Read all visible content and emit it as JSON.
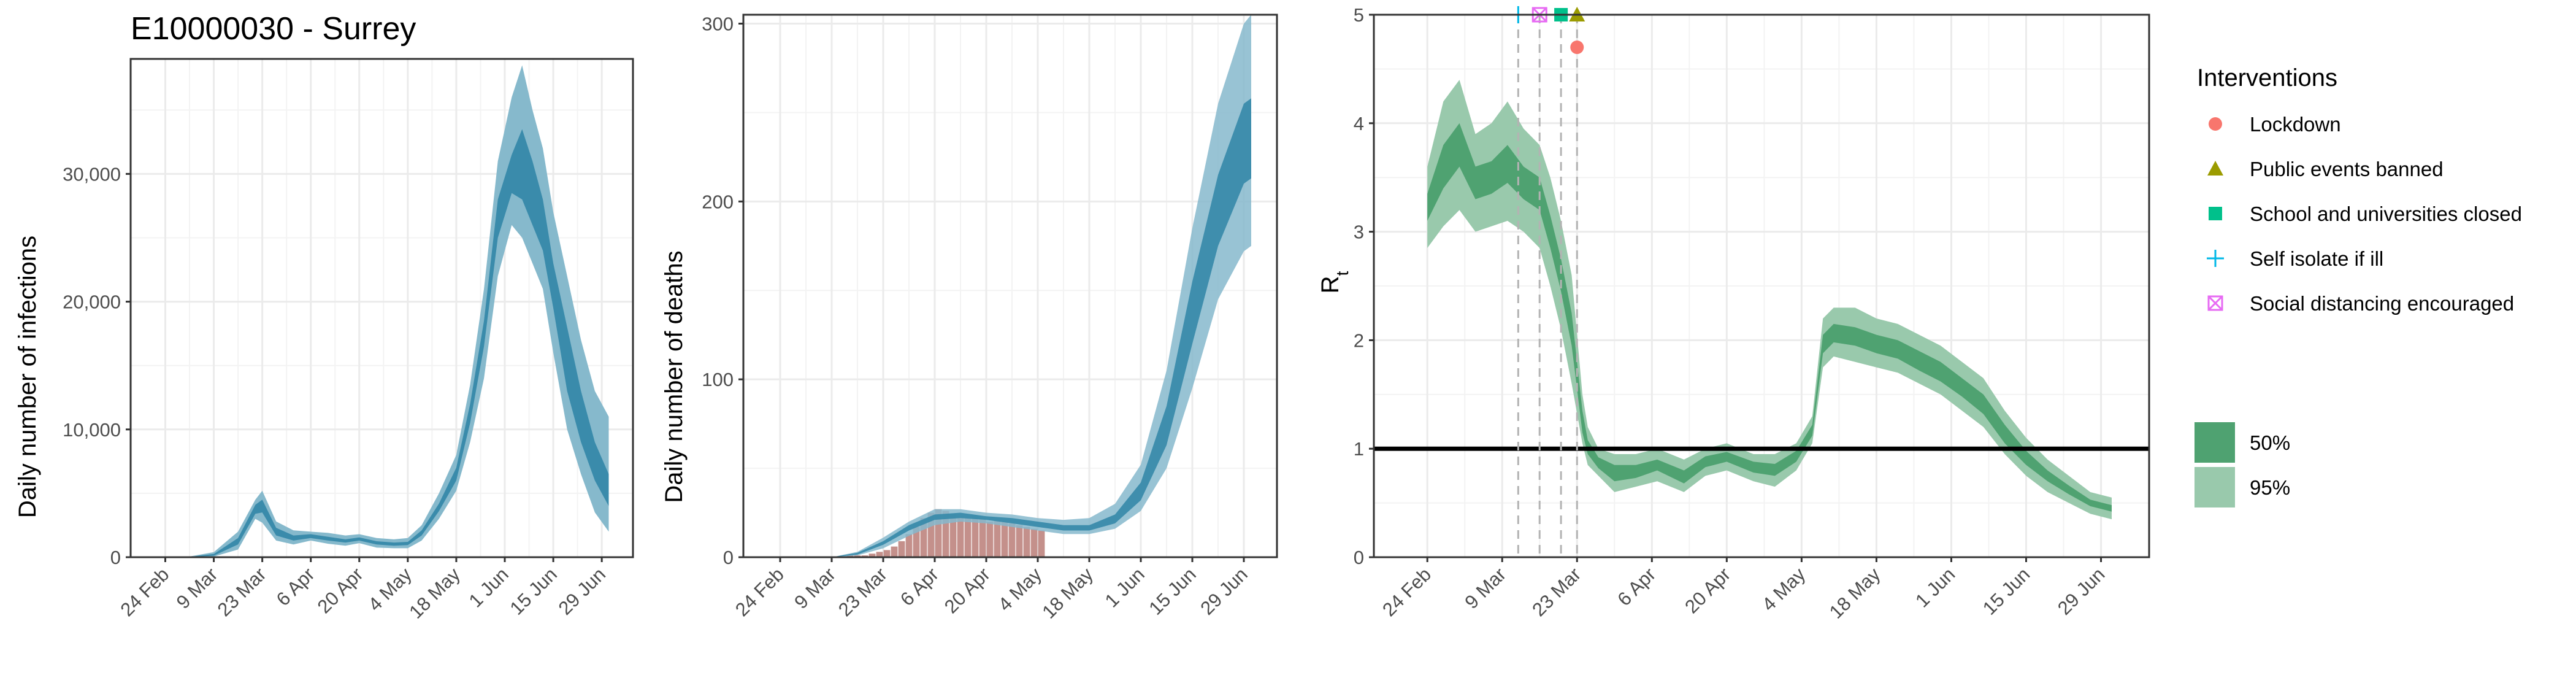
{
  "title": "E10000030 - Surrey",
  "colors": {
    "infections_95": "#86b9cc",
    "infections_50": "#3a8bab",
    "deaths_95": "#86b9cc",
    "deaths_50": "#3a8bab",
    "observed_deaths": "#c4908b",
    "rt_95": "#99c9ac",
    "rt_50": "#4fa271",
    "grid": "#ebebeb",
    "panel_border": "#333333"
  },
  "date_ticks": [
    "24 Feb",
    "9 Mar",
    "23 Mar",
    "6 Apr",
    "20 Apr",
    "4 May",
    "18 May",
    "1 Jun",
    "15 Jun",
    "29 Jun"
  ],
  "date_ticks_iso": [
    "2020-02-24",
    "2020-03-09",
    "2020-03-23",
    "2020-04-06",
    "2020-04-20",
    "2020-05-04",
    "2020-05-18",
    "2020-06-01",
    "2020-06-15",
    "2020-06-29"
  ],
  "chart_data": [
    {
      "type": "area",
      "name": "infections",
      "ylabel": "Daily number of infections",
      "xlim": [
        "2020-02-14",
        "2020-07-08"
      ],
      "ylim": [
        0,
        39000
      ],
      "y_ticks": [
        0,
        10000,
        20000,
        30000
      ],
      "y_tick_labels": [
        "0",
        "10,000",
        "20,000",
        "30,000"
      ],
      "grid": true,
      "series": [
        {
          "name": "95%",
          "x": [
            "2020-02-24",
            "2020-03-01",
            "2020-03-09",
            "2020-03-16",
            "2020-03-21",
            "2020-03-23",
            "2020-03-27",
            "2020-04-01",
            "2020-04-06",
            "2020-04-11",
            "2020-04-16",
            "2020-04-20",
            "2020-04-25",
            "2020-04-30",
            "2020-05-04",
            "2020-05-08",
            "2020-05-13",
            "2020-05-18",
            "2020-05-22",
            "2020-05-26",
            "2020-05-30",
            "2020-06-03",
            "2020-06-06",
            "2020-06-09",
            "2020-06-12",
            "2020-06-15",
            "2020-06-19",
            "2020-06-23",
            "2020-06-27",
            "2020-07-01"
          ],
          "lower": [
            0,
            0,
            50,
            600,
            3000,
            2700,
            1300,
            1000,
            1300,
            1050,
            900,
            1100,
            750,
            700,
            700,
            1300,
            3000,
            5200,
            9000,
            14000,
            22000,
            26000,
            25000,
            23000,
            21000,
            16000,
            10000,
            6500,
            3500,
            2000
          ],
          "upper": [
            0,
            5,
            400,
            2000,
            4500,
            5200,
            2800,
            2100,
            2000,
            1900,
            1700,
            1800,
            1500,
            1400,
            1500,
            2500,
            5000,
            8000,
            13500,
            21000,
            31000,
            36000,
            38500,
            35000,
            32000,
            27000,
            22000,
            17000,
            13000,
            11000
          ]
        },
        {
          "name": "50%",
          "x": [
            "2020-02-24",
            "2020-03-01",
            "2020-03-09",
            "2020-03-16",
            "2020-03-21",
            "2020-03-23",
            "2020-03-27",
            "2020-04-01",
            "2020-04-06",
            "2020-04-11",
            "2020-04-16",
            "2020-04-20",
            "2020-04-25",
            "2020-04-30",
            "2020-05-04",
            "2020-05-08",
            "2020-05-13",
            "2020-05-18",
            "2020-05-22",
            "2020-05-26",
            "2020-05-30",
            "2020-06-03",
            "2020-06-06",
            "2020-06-09",
            "2020-06-12",
            "2020-06-15",
            "2020-06-19",
            "2020-06-23",
            "2020-06-27",
            "2020-07-01"
          ],
          "lower": [
            0,
            0,
            120,
            1000,
            3400,
            3500,
            1700,
            1300,
            1500,
            1300,
            1150,
            1300,
            1000,
            900,
            950,
            1700,
            3600,
            6000,
            10500,
            16500,
            25000,
            28500,
            28000,
            26000,
            24000,
            19500,
            13000,
            9000,
            6000,
            4000
          ],
          "upper": [
            0,
            2,
            250,
            1500,
            4100,
            4500,
            2300,
            1700,
            1800,
            1600,
            1400,
            1550,
            1250,
            1150,
            1200,
            2100,
            4200,
            7000,
            12000,
            18500,
            28000,
            31500,
            33500,
            31000,
            28000,
            23000,
            18000,
            13000,
            9000,
            6500
          ]
        }
      ]
    },
    {
      "type": "bar+area",
      "name": "deaths",
      "ylabel": "Daily number of deaths",
      "xlim": [
        "2020-02-14",
        "2020-07-08"
      ],
      "ylim": [
        0,
        305
      ],
      "y_ticks": [
        0,
        100,
        200,
        300
      ],
      "y_tick_labels": [
        "0",
        "100",
        "200",
        "300"
      ],
      "grid": true,
      "observed": {
        "x": [
          "2020-03-10",
          "2020-03-12",
          "2020-03-14",
          "2020-03-16",
          "2020-03-18",
          "2020-03-20",
          "2020-03-22",
          "2020-03-24",
          "2020-03-26",
          "2020-03-28",
          "2020-03-30",
          "2020-04-01",
          "2020-04-03",
          "2020-04-05",
          "2020-04-07",
          "2020-04-09",
          "2020-04-11",
          "2020-04-13",
          "2020-04-15",
          "2020-04-17",
          "2020-04-19",
          "2020-04-21",
          "2020-04-23",
          "2020-04-25",
          "2020-04-27",
          "2020-04-29",
          "2020-05-01",
          "2020-05-03",
          "2020-05-05"
        ],
        "values": [
          0,
          0,
          1,
          1,
          1,
          2,
          3,
          4,
          6,
          9,
          13,
          17,
          22,
          25,
          27,
          26,
          24,
          23,
          22,
          23,
          22,
          20,
          21,
          20,
          19,
          18,
          17,
          16,
          15
        ]
      },
      "series": [
        {
          "name": "95%",
          "x": [
            "2020-02-24",
            "2020-03-09",
            "2020-03-16",
            "2020-03-23",
            "2020-03-30",
            "2020-04-06",
            "2020-04-13",
            "2020-04-20",
            "2020-04-27",
            "2020-05-04",
            "2020-05-11",
            "2020-05-18",
            "2020-05-25",
            "2020-06-01",
            "2020-06-08",
            "2020-06-15",
            "2020-06-22",
            "2020-06-29",
            "2020-07-01"
          ],
          "lower": [
            0,
            0,
            1,
            5,
            12,
            18,
            20,
            19,
            17,
            15,
            13,
            13,
            16,
            26,
            50,
            95,
            145,
            172,
            175
          ],
          "upper": [
            0,
            0,
            3,
            11,
            20,
            27,
            27,
            25,
            24,
            22,
            21,
            22,
            30,
            52,
            105,
            185,
            255,
            300,
            305
          ]
        },
        {
          "name": "50%",
          "x": [
            "2020-02-24",
            "2020-03-09",
            "2020-03-16",
            "2020-03-23",
            "2020-03-30",
            "2020-04-06",
            "2020-04-13",
            "2020-04-20",
            "2020-04-27",
            "2020-05-04",
            "2020-05-11",
            "2020-05-18",
            "2020-05-25",
            "2020-06-01",
            "2020-06-08",
            "2020-06-15",
            "2020-06-22",
            "2020-06-29",
            "2020-07-01"
          ],
          "lower": [
            0,
            0,
            1.5,
            7,
            15,
            21,
            22,
            21,
            19,
            17,
            15,
            15,
            19,
            32,
            63,
            120,
            175,
            210,
            213
          ],
          "upper": [
            0,
            0,
            2.5,
            9,
            18,
            24,
            25,
            23,
            22,
            20,
            18,
            18,
            24,
            42,
            85,
            155,
            215,
            255,
            258
          ]
        }
      ]
    },
    {
      "type": "area",
      "name": "rt",
      "ylabel": "Rt",
      "xlim": [
        "2020-02-14",
        "2020-07-08"
      ],
      "ylim": [
        0,
        5
      ],
      "y_ticks": [
        0,
        1,
        2,
        3,
        4,
        5
      ],
      "y_tick_labels": [
        "0",
        "1",
        "2",
        "3",
        "4",
        "5"
      ],
      "grid": true,
      "reference_line": 1,
      "series": [
        {
          "name": "95%",
          "x": [
            "2020-02-24",
            "2020-02-27",
            "2020-03-01",
            "2020-03-04",
            "2020-03-07",
            "2020-03-10",
            "2020-03-13",
            "2020-03-16",
            "2020-03-18",
            "2020-03-20",
            "2020-03-22",
            "2020-03-24",
            "2020-03-25",
            "2020-03-27",
            "2020-03-30",
            "2020-04-03",
            "2020-04-07",
            "2020-04-12",
            "2020-04-16",
            "2020-04-20",
            "2020-04-25",
            "2020-04-29",
            "2020-05-03",
            "2020-05-06",
            "2020-05-08",
            "2020-05-10",
            "2020-05-14",
            "2020-05-18",
            "2020-05-22",
            "2020-05-26",
            "2020-05-30",
            "2020-06-03",
            "2020-06-07",
            "2020-06-11",
            "2020-06-15",
            "2020-06-19",
            "2020-06-23",
            "2020-06-27",
            "2020-07-01"
          ],
          "lower": [
            2.85,
            3.05,
            3.2,
            3.0,
            3.05,
            3.1,
            3.0,
            2.85,
            2.5,
            2.1,
            1.6,
            1.05,
            0.85,
            0.75,
            0.6,
            0.65,
            0.7,
            0.6,
            0.75,
            0.8,
            0.7,
            0.65,
            0.8,
            1.05,
            1.75,
            1.85,
            1.8,
            1.75,
            1.7,
            1.6,
            1.5,
            1.35,
            1.2,
            0.95,
            0.75,
            0.6,
            0.5,
            0.4,
            0.35
          ],
          "upper": [
            3.6,
            4.2,
            4.4,
            3.9,
            4.0,
            4.2,
            3.95,
            3.8,
            3.5,
            3.1,
            2.6,
            1.5,
            1.2,
            1.0,
            0.95,
            0.95,
            1.0,
            0.9,
            1.0,
            1.05,
            0.95,
            0.95,
            1.05,
            1.3,
            2.2,
            2.3,
            2.3,
            2.2,
            2.15,
            2.05,
            1.95,
            1.8,
            1.65,
            1.35,
            1.1,
            0.9,
            0.75,
            0.6,
            0.55
          ]
        },
        {
          "name": "50%",
          "x": [
            "2020-02-24",
            "2020-02-27",
            "2020-03-01",
            "2020-03-04",
            "2020-03-07",
            "2020-03-10",
            "2020-03-13",
            "2020-03-16",
            "2020-03-18",
            "2020-03-20",
            "2020-03-22",
            "2020-03-24",
            "2020-03-25",
            "2020-03-27",
            "2020-03-30",
            "2020-04-03",
            "2020-04-07",
            "2020-04-12",
            "2020-04-16",
            "2020-04-20",
            "2020-04-25",
            "2020-04-29",
            "2020-05-03",
            "2020-05-06",
            "2020-05-08",
            "2020-05-10",
            "2020-05-14",
            "2020-05-18",
            "2020-05-22",
            "2020-05-26",
            "2020-05-30",
            "2020-06-03",
            "2020-06-07",
            "2020-06-11",
            "2020-06-15",
            "2020-06-19",
            "2020-06-23",
            "2020-06-27",
            "2020-07-01"
          ],
          "lower": [
            3.1,
            3.4,
            3.6,
            3.3,
            3.35,
            3.45,
            3.3,
            3.2,
            2.85,
            2.45,
            1.95,
            1.15,
            0.95,
            0.82,
            0.7,
            0.73,
            0.8,
            0.68,
            0.83,
            0.88,
            0.78,
            0.75,
            0.88,
            1.12,
            1.88,
            1.98,
            1.95,
            1.88,
            1.83,
            1.72,
            1.62,
            1.48,
            1.32,
            1.05,
            0.85,
            0.7,
            0.58,
            0.47,
            0.42
          ],
          "upper": [
            3.35,
            3.8,
            4.0,
            3.6,
            3.65,
            3.8,
            3.6,
            3.5,
            3.15,
            2.75,
            2.25,
            1.35,
            1.08,
            0.92,
            0.85,
            0.85,
            0.9,
            0.8,
            0.93,
            0.97,
            0.88,
            0.86,
            0.98,
            1.22,
            2.05,
            2.15,
            2.12,
            2.05,
            2.0,
            1.9,
            1.8,
            1.65,
            1.5,
            1.22,
            0.98,
            0.8,
            0.66,
            0.53,
            0.48
          ]
        }
      ],
      "interventions": [
        {
          "name": "Self isolate if ill",
          "date": "2020-03-12",
          "y": 5.0,
          "shape": "plus",
          "color": "#00b8e7"
        },
        {
          "name": "Social distancing encouraged",
          "date": "2020-03-16",
          "y": 5.0,
          "shape": "box-x",
          "color": "#e76bf3"
        },
        {
          "name": "School and universities closed",
          "date": "2020-03-20",
          "y": 5.0,
          "shape": "square",
          "color": "#00c08b"
        },
        {
          "name": "Public events banned",
          "date": "2020-03-23",
          "y": 5.0,
          "shape": "triangle",
          "color": "#9b9b00"
        },
        {
          "name": "Lockdown",
          "date": "2020-03-23",
          "y": 4.7,
          "shape": "circle",
          "color": "#f8766d"
        }
      ]
    }
  ],
  "legend": {
    "interventions_title": "Interventions",
    "interventions": [
      {
        "label": "Lockdown",
        "shape": "circle",
        "color": "#f8766d"
      },
      {
        "label": "Public events banned",
        "shape": "triangle",
        "color": "#9b9b00"
      },
      {
        "label": "School and universities closed",
        "shape": "square",
        "color": "#00c08b"
      },
      {
        "label": "Self isolate if ill",
        "shape": "plus",
        "color": "#00b8e7"
      },
      {
        "label": "Social distancing encouraged",
        "shape": "box-x",
        "color": "#e76bf3"
      }
    ],
    "intervals": [
      {
        "label": "50%",
        "color": "#4fa271"
      },
      {
        "label": "95%",
        "color": "#99c9ac"
      }
    ]
  }
}
